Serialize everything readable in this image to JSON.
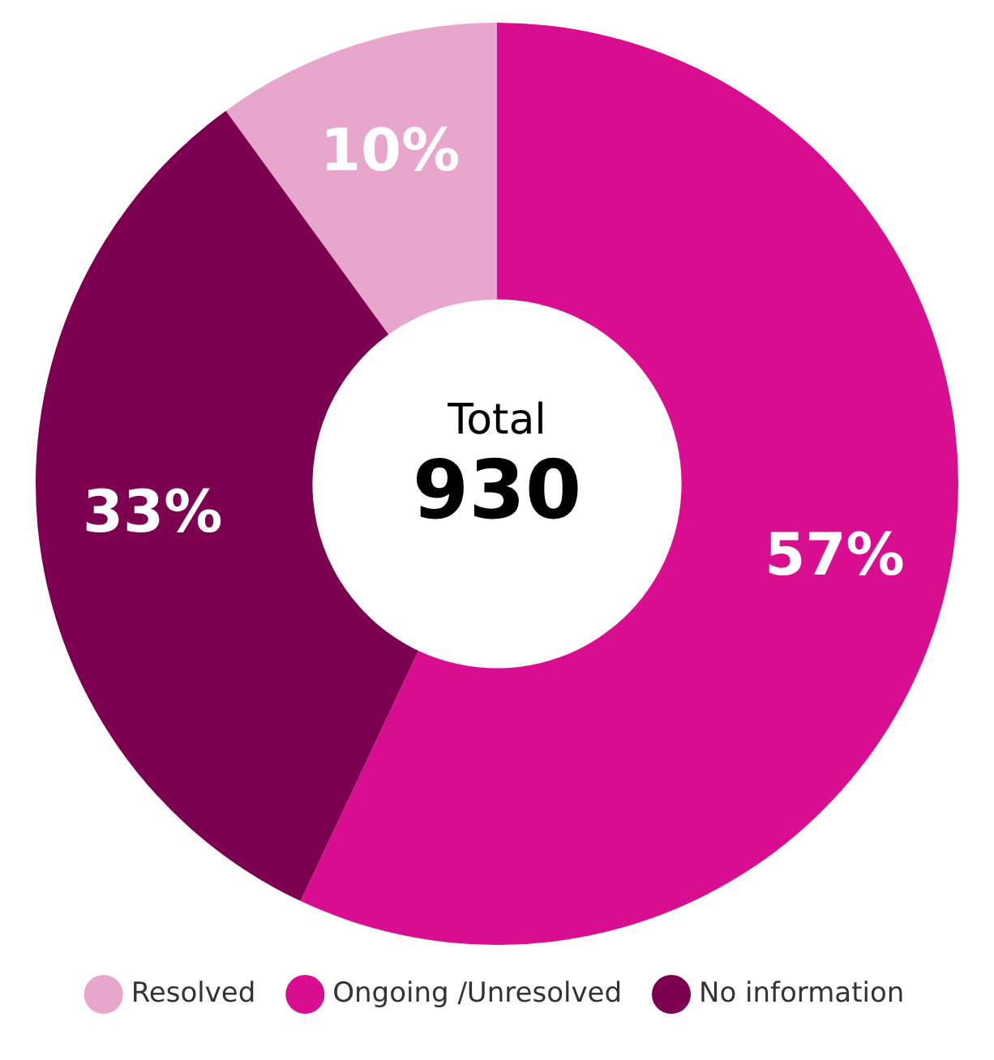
{
  "chart_data": {
    "type": "donut",
    "categories": [
      "Resolved",
      "Ongoing /Unresolved",
      "No information"
    ],
    "values": [
      10,
      57,
      33
    ],
    "colors": [
      "#e8a6cc",
      "#d90d8f",
      "#7d0050"
    ],
    "value_labels": [
      "10%",
      "57%",
      "33%"
    ],
    "annotations": [
      "Total",
      "930"
    ],
    "legend": "bottom"
  }
}
